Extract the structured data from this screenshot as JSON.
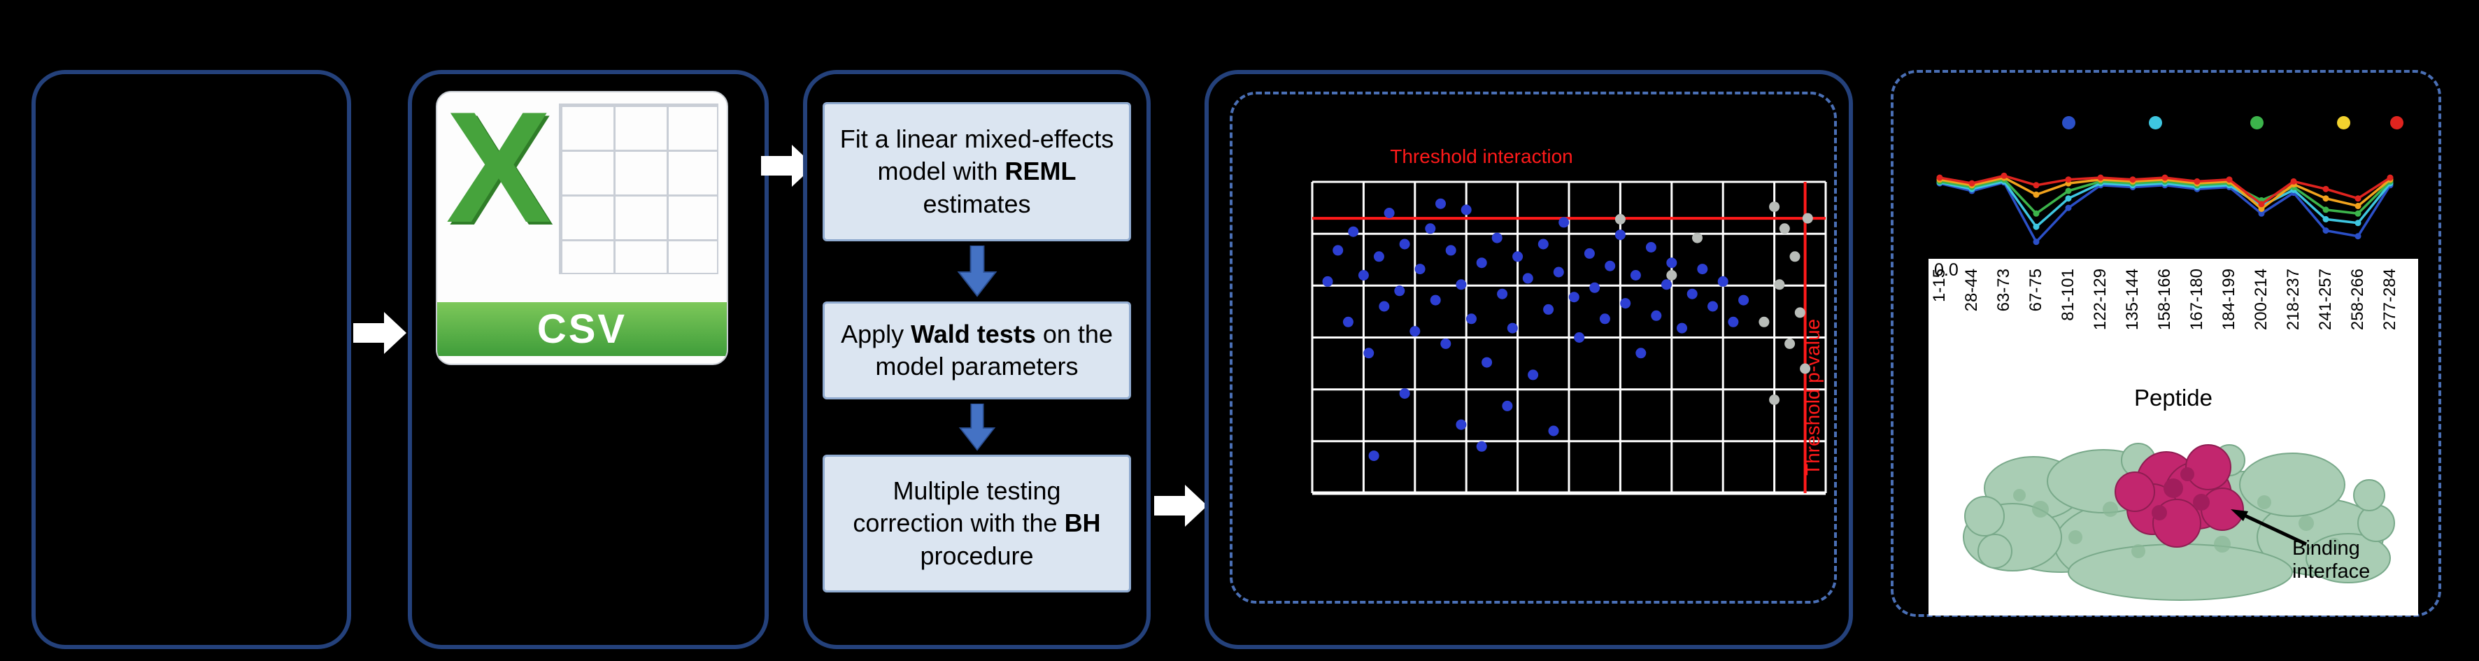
{
  "colors": {
    "background": "#000000",
    "panel_border": "#24417b",
    "dashed_border": "#4a6fb5",
    "step_box_fill": "#dbe5f1",
    "step_box_border": "#8faacf",
    "threshold_red": "#ff1a1a",
    "csv_green": "#46a33c",
    "csv_band_green": "#3f9d3a",
    "protein_green": "#a9cdb4",
    "protein_magenta": "#c2266e",
    "white_arrow": "#ffffff",
    "blue_arrow": "#4472c4"
  },
  "csv": {
    "x_letter": "X",
    "label": "CSV"
  },
  "steps": [
    {
      "pre": "Fit a linear mixed-effects model with ",
      "bold": "REML",
      "post": " estimates"
    },
    {
      "pre": "Apply ",
      "bold": "Wald tests",
      "post": " on the model parameters"
    },
    {
      "pre": "Multiple testing correction with the ",
      "bold": "BH",
      "post": " procedure"
    }
  ],
  "protein": {
    "annotation": "Binding interface"
  },
  "chart_data": [
    {
      "type": "scatter",
      "title": "",
      "annotations": {
        "interaction": "Threshold interaction",
        "pvalue": "Threshold p-value"
      },
      "grid": {
        "x_divisions": 10,
        "y_divisions": 6,
        "grid_color": "#ffffff"
      },
      "thresholds": {
        "y_frac": 0.117,
        "x_frac": 0.96,
        "color": "#ff1a1a"
      },
      "series": [
        {
          "name": "blue-points",
          "color": "#2d3fd3",
          "points": [
            [
              0.03,
              0.32
            ],
            [
              0.05,
              0.22
            ],
            [
              0.07,
              0.45
            ],
            [
              0.08,
              0.16
            ],
            [
              0.1,
              0.3
            ],
            [
              0.11,
              0.55
            ],
            [
              0.13,
              0.24
            ],
            [
              0.14,
              0.4
            ],
            [
              0.15,
              0.1
            ],
            [
              0.17,
              0.35
            ],
            [
              0.18,
              0.2
            ],
            [
              0.18,
              0.68
            ],
            [
              0.2,
              0.48
            ],
            [
              0.21,
              0.28
            ],
            [
              0.23,
              0.15
            ],
            [
              0.24,
              0.38
            ],
            [
              0.25,
              0.07
            ],
            [
              0.26,
              0.52
            ],
            [
              0.27,
              0.22
            ],
            [
              0.29,
              0.33
            ],
            [
              0.29,
              0.78
            ],
            [
              0.3,
              0.09
            ],
            [
              0.31,
              0.44
            ],
            [
              0.33,
              0.26
            ],
            [
              0.33,
              0.85
            ],
            [
              0.34,
              0.58
            ],
            [
              0.36,
              0.18
            ],
            [
              0.37,
              0.36
            ],
            [
              0.38,
              0.72
            ],
            [
              0.39,
              0.47
            ],
            [
              0.4,
              0.24
            ],
            [
              0.42,
              0.31
            ],
            [
              0.43,
              0.62
            ],
            [
              0.45,
              0.2
            ],
            [
              0.46,
              0.41
            ],
            [
              0.47,
              0.8
            ],
            [
              0.48,
              0.29
            ],
            [
              0.49,
              0.13
            ],
            [
              0.51,
              0.37
            ],
            [
              0.52,
              0.5
            ],
            [
              0.54,
              0.23
            ],
            [
              0.55,
              0.34
            ],
            [
              0.57,
              0.44
            ],
            [
              0.58,
              0.27
            ],
            [
              0.6,
              0.17
            ],
            [
              0.61,
              0.39
            ],
            [
              0.63,
              0.3
            ],
            [
              0.64,
              0.55
            ],
            [
              0.66,
              0.21
            ],
            [
              0.67,
              0.43
            ],
            [
              0.69,
              0.33
            ],
            [
              0.7,
              0.26
            ],
            [
              0.72,
              0.47
            ],
            [
              0.74,
              0.36
            ],
            [
              0.76,
              0.28
            ],
            [
              0.78,
              0.4
            ],
            [
              0.8,
              0.32
            ],
            [
              0.82,
              0.45
            ],
            [
              0.84,
              0.38
            ],
            [
              0.12,
              0.88
            ]
          ]
        },
        {
          "name": "gray-points",
          "color": "#b9bdb9",
          "points": [
            [
              0.9,
              0.08
            ],
            [
              0.92,
              0.15
            ],
            [
              0.94,
              0.24
            ],
            [
              0.91,
              0.33
            ],
            [
              0.95,
              0.42
            ],
            [
              0.93,
              0.52
            ],
            [
              0.96,
              0.6
            ],
            [
              0.9,
              0.7
            ],
            [
              0.965,
              0.117
            ],
            [
              0.75,
              0.18
            ],
            [
              0.7,
              0.3
            ],
            [
              0.6,
              0.12
            ],
            [
              0.88,
              0.45
            ]
          ]
        }
      ]
    },
    {
      "type": "line",
      "xlabel": "Peptide",
      "y_tick_label": "0.0",
      "x_labels": [
        "1-15",
        "28-44",
        "63-73",
        "67-75",
        "81-101",
        "122-129",
        "135-144",
        "158-166",
        "167-180",
        "184-199",
        "200-214",
        "218-237",
        "241-257",
        "258-266",
        "277-284"
      ],
      "legend_markers": [
        {
          "x_frac": 0.3,
          "color": "#2b50c8"
        },
        {
          "x_frac": 0.48,
          "color": "#3ec6e0"
        },
        {
          "x_frac": 0.69,
          "color": "#3cb44b"
        },
        {
          "x_frac": 0.87,
          "color": "#f2d22e"
        },
        {
          "x_frac": 0.98,
          "color": "#e0241f"
        }
      ],
      "series": [
        {
          "name": "blue-line",
          "color": "#2b50c8",
          "values": [
            0.74,
            0.66,
            0.75,
            0.12,
            0.48,
            0.72,
            0.7,
            0.72,
            0.68,
            0.7,
            0.42,
            0.64,
            0.24,
            0.18,
            0.72
          ]
        },
        {
          "name": "cyan-line",
          "color": "#3ec6e0",
          "values": [
            0.75,
            0.68,
            0.76,
            0.28,
            0.58,
            0.74,
            0.72,
            0.74,
            0.7,
            0.72,
            0.5,
            0.67,
            0.36,
            0.32,
            0.74
          ]
        },
        {
          "name": "green-line",
          "color": "#3cb44b",
          "values": [
            0.76,
            0.7,
            0.78,
            0.42,
            0.66,
            0.76,
            0.74,
            0.76,
            0.72,
            0.74,
            0.56,
            0.7,
            0.46,
            0.42,
            0.76
          ]
        },
        {
          "name": "yellow-line",
          "color": "#f2a31d",
          "values": [
            0.78,
            0.72,
            0.8,
            0.62,
            0.74,
            0.78,
            0.76,
            0.78,
            0.74,
            0.76,
            0.47,
            0.73,
            0.58,
            0.5,
            0.78
          ]
        },
        {
          "name": "red-line",
          "color": "#e0241f",
          "values": [
            0.8,
            0.74,
            0.82,
            0.72,
            0.78,
            0.8,
            0.78,
            0.8,
            0.76,
            0.78,
            0.52,
            0.76,
            0.68,
            0.58,
            0.8
          ]
        }
      ]
    }
  ]
}
